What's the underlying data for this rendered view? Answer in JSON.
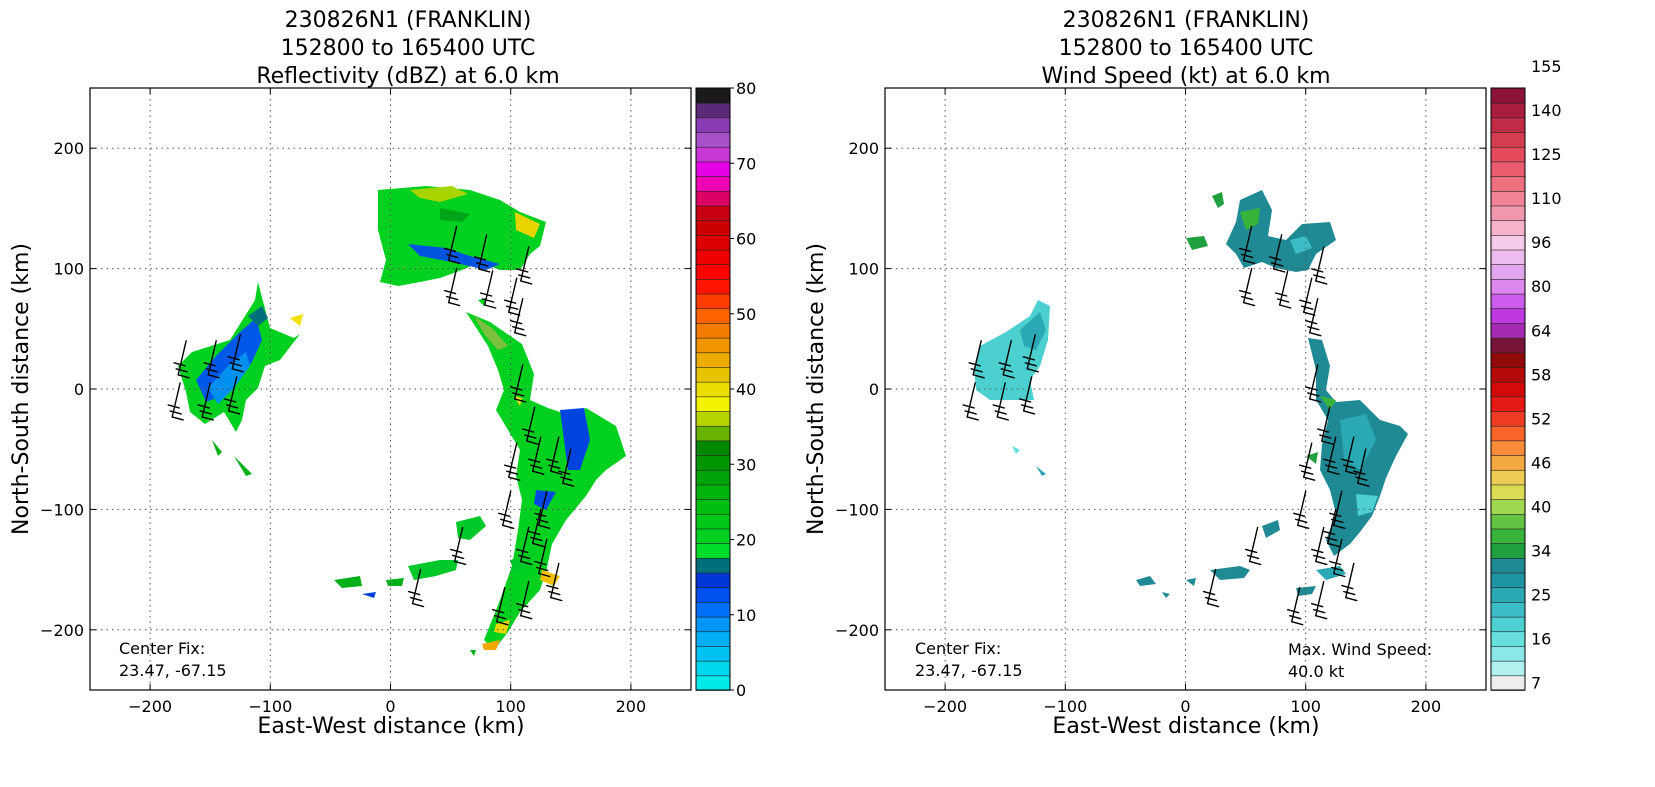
{
  "chart_data": [
    {
      "type": "heatmap",
      "title_lines": [
        "230826N1 (FRANKLIN)",
        "152800 to 165400 UTC",
        "Reflectivity (dBZ) at 6.0 km"
      ],
      "xlabel": "East-West distance (km)",
      "ylabel": "North-South distance (km)",
      "xlim": [
        -250,
        250
      ],
      "ylim": [
        -250,
        250
      ],
      "xticks": [
        -200,
        -100,
        0,
        100,
        200
      ],
      "yticks": [
        -200,
        -100,
        0,
        100,
        200
      ],
      "grid": true,
      "annotation_lines": [
        "Center Fix:",
        "23.47, -67.15"
      ],
      "colorbar": {
        "min": 0,
        "max": 80,
        "ticks": [
          0,
          10,
          20,
          30,
          40,
          50,
          60,
          70,
          80
        ],
        "colors": [
          "#00eaea",
          "#00d6ee",
          "#00c2f2",
          "#00aef5",
          "#0096f8",
          "#0070fa",
          "#0050f0",
          "#0036d6",
          "#00707c",
          "#00dc2c",
          "#00d021",
          "#00c818",
          "#00be10",
          "#00b20c",
          "#00a408",
          "#009600",
          "#008800",
          "#68b400",
          "#b8d400",
          "#f4f400",
          "#ecde00",
          "#e8c400",
          "#ecac00",
          "#f09400",
          "#f47c00",
          "#ff6400",
          "#ff3c00",
          "#ff1400",
          "#ff0000",
          "#ee0000",
          "#dc0000",
          "#cc0000",
          "#c80014",
          "#dc0064",
          "#ee00b4",
          "#e600e6",
          "#c838d6",
          "#a850c8",
          "#8a3cb4",
          "#5a2a78",
          "#1a1a1a"
        ]
      },
      "wind_barbs": true
    },
    {
      "type": "heatmap",
      "title_lines": [
        "230826N1 (FRANKLIN)",
        "152800 to 165400 UTC",
        "Wind Speed (kt) at 6.0 km"
      ],
      "xlabel": "East-West distance (km)",
      "ylabel": "North-South distance (km)",
      "xlim": [
        -250,
        250
      ],
      "ylim": [
        -250,
        250
      ],
      "xticks": [
        -200,
        -100,
        0,
        100,
        200
      ],
      "yticks": [
        -200,
        -100,
        0,
        100,
        200
      ],
      "grid": true,
      "annotation_lines": [
        "Center Fix:",
        "23.47, -67.15"
      ],
      "max_wind_lines": [
        "Max. Wind Speed:",
        "40.0 kt"
      ],
      "colorbar": {
        "ticks": [
          "7",
          "16",
          "25",
          "34",
          "40",
          "46",
          "52",
          "58",
          "64",
          "80",
          "96",
          "110",
          "125",
          "140",
          "155"
        ],
        "colors": [
          "#eeeeee",
          "#b2f0f0",
          "#8ae8e8",
          "#66dede",
          "#4ed0d2",
          "#3cbcc4",
          "#2aa8b4",
          "#1f94a2",
          "#1f8a94",
          "#21a040",
          "#38b43a",
          "#62c442",
          "#a0d850",
          "#dcdc54",
          "#eccc52",
          "#f4a840",
          "#f88c38",
          "#f8642c",
          "#ee3c24",
          "#e61a14",
          "#d20a0a",
          "#b40a0a",
          "#900808",
          "#781438",
          "#a42ab4",
          "#c038e0",
          "#cc5cec",
          "#dc88ee",
          "#e4a6ee",
          "#eebcee",
          "#f6ccea",
          "#f6b4cc",
          "#f298ae",
          "#f08496",
          "#ec7080",
          "#ea5c6e",
          "#e44a5c",
          "#d63c50",
          "#c02c46",
          "#a81c40",
          "#8c1438"
        ]
      },
      "wind_barbs": true
    }
  ]
}
